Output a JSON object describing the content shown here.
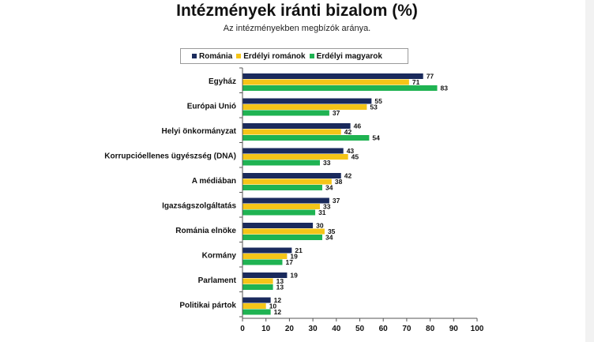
{
  "chart_data": {
    "type": "bar",
    "orientation": "horizontal",
    "title": "Intézmények iránti bizalom (%)",
    "subtitle": "Az intézményekben megbízók aránya.",
    "categories": [
      "Egyház",
      "Európai Unió",
      "Helyi önkormányzat",
      "Korrupcióellenes ügyészség (DNA)",
      "A médiában",
      "Igazságszolgáltatás",
      "Románia elnöke",
      "Kormány",
      "Parlament",
      "Politikai pártok"
    ],
    "series": [
      {
        "name": "Románia",
        "color": "#1a2a5c",
        "values": [
          77,
          55,
          46,
          43,
          42,
          37,
          30,
          21,
          19,
          12
        ]
      },
      {
        "name": "Erdélyi románok",
        "color": "#f5c518",
        "values": [
          71,
          53,
          42,
          45,
          38,
          33,
          35,
          19,
          13,
          10
        ]
      },
      {
        "name": "Erdélyi magyarok",
        "color": "#1fb352",
        "values": [
          83,
          37,
          54,
          33,
          34,
          31,
          34,
          17,
          13,
          12
        ]
      }
    ],
    "xlim": [
      0,
      100
    ],
    "xticks": [
      0,
      10,
      20,
      30,
      40,
      50,
      60,
      70,
      80,
      90,
      100
    ],
    "legend_position": "top",
    "grid": false
  }
}
